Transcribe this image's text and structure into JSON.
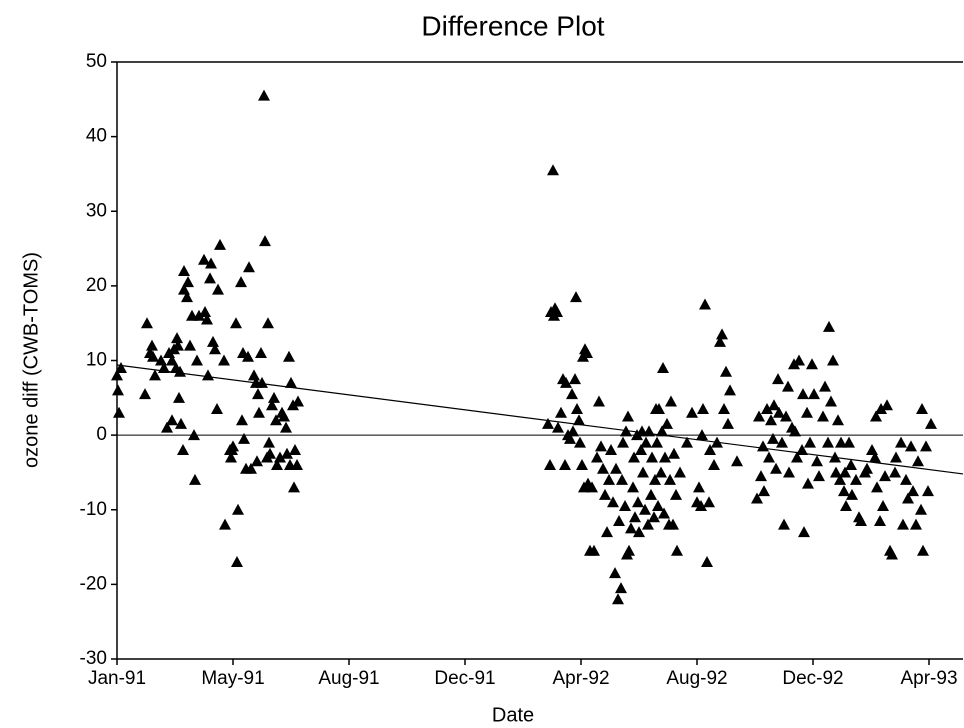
{
  "chart_data": {
    "type": "scatter",
    "title": "Difference Plot",
    "x_label": "Date",
    "y_label": "ozone diff (CWB-TOMS)",
    "xlim": [
      0,
      846
    ],
    "ylim": [
      -30,
      50
    ],
    "xticks": [
      {
        "value": 0,
        "label": "Jan-91"
      },
      {
        "value": 116,
        "label": "May-91"
      },
      {
        "value": 232,
        "label": "Aug-91"
      },
      {
        "value": 348,
        "label": "Dec-91"
      },
      {
        "value": 464,
        "label": "Apr-92"
      },
      {
        "value": 580,
        "label": "Aug-92"
      },
      {
        "value": 696,
        "label": "Dec-92"
      },
      {
        "value": 812,
        "label": "Apr-93"
      }
    ],
    "yticks": [
      -30,
      -20,
      -10,
      0,
      10,
      20,
      30,
      40,
      50
    ],
    "hline": 0,
    "series": [
      {
        "color": "#000000",
        "marker": "triangle",
        "x": [
          0,
          1,
          2,
          4,
          30,
          28,
          33,
          35,
          36,
          38,
          44,
          47,
          50,
          52,
          55,
          55,
          57,
          59,
          60,
          61,
          62,
          63,
          64,
          66,
          67,
          67,
          70,
          71,
          73,
          75,
          77,
          78,
          80,
          82,
          87,
          88,
          90,
          91,
          93,
          94,
          96,
          98,
          100,
          101,
          103,
          107,
          108,
          113,
          114,
          115,
          116,
          119,
          120,
          121,
          124,
          125,
          126,
          127,
          129,
          131,
          132,
          134,
          137,
          139,
          140,
          141,
          142,
          144,
          145,
          147,
          148,
          150,
          151,
          152,
          153,
          155,
          157,
          159,
          160,
          163,
          165,
          167,
          169,
          170,
          172,
          173,
          174,
          176,
          177,
          178,
          180,
          181,
          431,
          433,
          434,
          436,
          437,
          438,
          440,
          441,
          444,
          446,
          448,
          449,
          451,
          453,
          455,
          456,
          458,
          459,
          460,
          462,
          463,
          465,
          466,
          467,
          468,
          470,
          471,
          473,
          475,
          477,
          480,
          482,
          484,
          486,
          488,
          490,
          492,
          494,
          496,
          498,
          499,
          501,
          502,
          504,
          505,
          506,
          508,
          509,
          510,
          511,
          512,
          514,
          516,
          517,
          518,
          520,
          521,
          522,
          524,
          525,
          526,
          528,
          529,
          531,
          532,
          534,
          535,
          537,
          538,
          539,
          540,
          541,
          542,
          544,
          545,
          546,
          547,
          548,
          550,
          552,
          553,
          554,
          556,
          557,
          559,
          560,
          563,
          570,
          575,
          580,
          582,
          584,
          585,
          586,
          588,
          590,
          592,
          593,
          597,
          600,
          603,
          605,
          607,
          609,
          611,
          613,
          620,
          640,
          642,
          644,
          646,
          647,
          650,
          652,
          654,
          656,
          657,
          659,
          661,
          662,
          665,
          667,
          669,
          671,
          672,
          675,
          677,
          678,
          680,
          682,
          685,
          686,
          687,
          690,
          691,
          693,
          695,
          697,
          700,
          702,
          706,
          708,
          711,
          712,
          714,
          716,
          718,
          719,
          721,
          723,
          724,
          727,
          728,
          729,
          732,
          734,
          735,
          739,
          742,
          744,
          748,
          750,
          755,
          758,
          759,
          760,
          763,
          764,
          766,
          768,
          770,
          773,
          775,
          778,
          779,
          784,
          786,
          789,
          791,
          794,
          796,
          799,
          801,
          804,
          805,
          806,
          809,
          811,
          814
        ],
        "values": [
          8,
          6,
          3,
          9,
          15,
          5.5,
          11,
          12,
          10.5,
          8,
          10,
          9,
          1,
          11,
          2,
          10,
          11.5,
          9,
          13,
          12,
          5,
          8.5,
          1.5,
          -2,
          22,
          19.5,
          18.5,
          20.5,
          12,
          16,
          0,
          -6,
          10,
          16,
          23.5,
          16.5,
          15.5,
          8,
          21,
          23,
          12.5,
          11.5,
          3.5,
          19.5,
          25.5,
          10,
          -12,
          -2,
          -3,
          -2,
          -1.5,
          15,
          -17,
          -10,
          20.5,
          2,
          11,
          -0.5,
          -4.5,
          10.5,
          22.5,
          -4.5,
          8,
          7,
          -3.5,
          5.5,
          3,
          11,
          7,
          45.5,
          26,
          -3,
          15,
          -1,
          -2.5,
          4,
          5,
          2,
          -4,
          -3,
          3,
          2.5,
          1,
          -2.5,
          10.5,
          -4,
          7,
          4,
          -7,
          -2,
          -4,
          4.5,
          1.5,
          -4,
          16.5,
          35.5,
          16,
          17,
          16.5,
          1,
          3,
          7.5,
          -4,
          7,
          0,
          -0.5,
          5.5,
          0.5,
          7.5,
          18.5,
          3.5,
          2,
          -1,
          -4,
          10.5,
          -7,
          11.5,
          11,
          -6.5,
          -15.5,
          -7,
          -15.5,
          -3,
          4.5,
          -1.5,
          -4.5,
          -8,
          -13,
          -6,
          -2,
          -9,
          -18.5,
          -4.5,
          -22,
          -11.5,
          -20.5,
          -6,
          -1,
          -9.5,
          0.5,
          -16,
          2.5,
          -15.5,
          -12.5,
          -7,
          -3,
          -11,
          0,
          -9,
          -13,
          -2,
          0.5,
          -5,
          -10,
          -1,
          -12,
          0.5,
          -8,
          -3,
          -11,
          -6,
          3.5,
          -1,
          -9.5,
          3.5,
          -5,
          0.5,
          9,
          -10.5,
          -3,
          1.5,
          -12,
          -6,
          4.5,
          -12,
          -2.5,
          -8,
          -15.5,
          -5,
          -1,
          3,
          -9,
          -7,
          -9.5,
          0,
          3.5,
          17.5,
          -17,
          -9,
          -2,
          -4,
          -1,
          12.5,
          13.5,
          3.5,
          8.5,
          1.5,
          6,
          -3.5,
          -8.5,
          2.5,
          -5.5,
          -1.5,
          -7.5,
          3.5,
          -3,
          2,
          -0.5,
          4,
          -4.5,
          7.5,
          3,
          -1,
          -12,
          2.5,
          6.5,
          -5,
          1,
          9.5,
          0.5,
          -3,
          10,
          -2,
          5.5,
          -13,
          3,
          -6.5,
          -1,
          9.5,
          5.5,
          -3.5,
          -5.5,
          2.5,
          6.5,
          -1,
          14.5,
          4.5,
          10,
          -3,
          -5,
          2,
          -6,
          -1,
          -7.5,
          -5,
          -9.5,
          -1,
          -4,
          -8,
          -6,
          -11,
          -11.5,
          -5,
          -4.5,
          -2,
          -3,
          2.5,
          -7,
          -11.5,
          3.5,
          -9.5,
          -5.5,
          4,
          -15.5,
          -16,
          -5,
          -3,
          -1,
          -12,
          -6,
          -8.5,
          -1.5,
          -7.5,
          -12,
          -3.5,
          -10,
          3.5,
          -15.5,
          -1.5,
          -7.5,
          1.5
        ]
      },
      {
        "color": "#000000",
        "mode": "line",
        "x": [
          0,
          846
        ],
        "values": [
          9.4,
          -5.2
        ]
      }
    ]
  }
}
